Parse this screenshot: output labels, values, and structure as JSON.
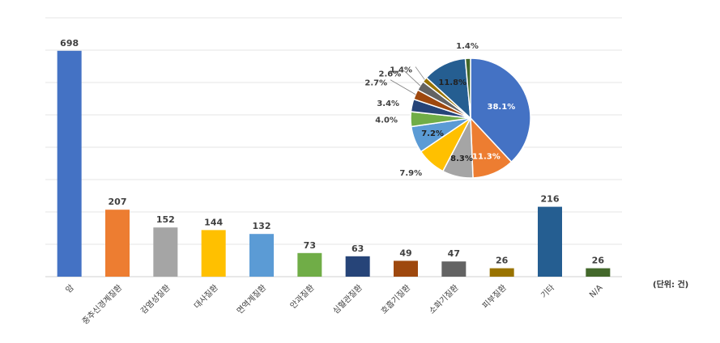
{
  "chart_data": [
    {
      "type": "bar",
      "categories": [
        "암",
        "중추신경계질환",
        "감염성질환",
        "대사질환",
        "면역계질환",
        "안과질환",
        "심혈관질환",
        "호흡기질환",
        "소화기질환",
        "피부질환",
        "기타",
        "N/A"
      ],
      "values": [
        698,
        207,
        152,
        144,
        132,
        73,
        63,
        49,
        47,
        26,
        216,
        26
      ],
      "colors": [
        "#4472C4",
        "#ED7D31",
        "#A5A5A5",
        "#FFC000",
        "#5B9BD5",
        "#70AD47",
        "#264478",
        "#9E480E",
        "#636363",
        "#997300",
        "#255E91",
        "#43682B"
      ],
      "ylim": [
        0,
        800
      ],
      "grid": true,
      "unit_note": "(단위: 건)"
    },
    {
      "type": "pie",
      "values": [
        38.1,
        11.3,
        8.3,
        7.9,
        7.2,
        4.0,
        3.4,
        2.7,
        2.6,
        1.4,
        11.8,
        1.4
      ],
      "labels": [
        "38.1%",
        "11.3%",
        "8.3%",
        "7.9%",
        "7.2%",
        "4.0%",
        "3.4%",
        "2.7%",
        "2.6%",
        "1.4%",
        "11.8%",
        "1.4%"
      ],
      "colors": [
        "#4472C4",
        "#ED7D31",
        "#A5A5A5",
        "#FFC000",
        "#5B9BD5",
        "#70AD47",
        "#264478",
        "#9E480E",
        "#636363",
        "#997300",
        "#255E91",
        "#43682B"
      ]
    }
  ]
}
